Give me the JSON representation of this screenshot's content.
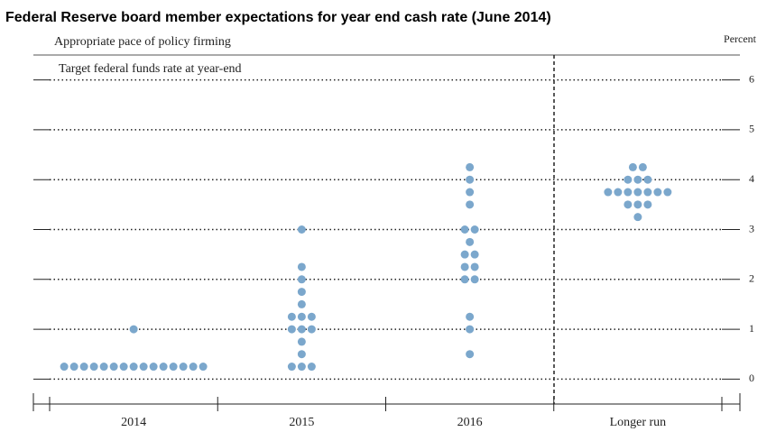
{
  "chart_data": {
    "type": "dotplot",
    "title": "Federal Reserve board member expectations for year end cash rate (June 2014)",
    "subtitle": "Appropriate pace of policy firming",
    "y_label": "Target federal funds rate at year-end",
    "y_unit": "Percent",
    "categories": [
      "2014",
      "2015",
      "2016",
      "Longer run"
    ],
    "values": [
      [
        0.25,
        0.25,
        0.25,
        0.25,
        0.25,
        0.25,
        0.25,
        0.25,
        0.25,
        0.25,
        0.25,
        0.25,
        0.25,
        0.25,
        0.25,
        1.0
      ],
      [
        0.25,
        0.25,
        0.25,
        0.5,
        0.75,
        1.0,
        1.0,
        1.0,
        1.25,
        1.25,
        1.25,
        1.5,
        1.75,
        2.0,
        2.25,
        3.0
      ],
      [
        0.5,
        1.0,
        1.25,
        2.0,
        2.0,
        2.25,
        2.25,
        2.5,
        2.5,
        2.75,
        3.0,
        3.0,
        3.5,
        3.75,
        4.0,
        4.25
      ],
      [
        3.25,
        3.5,
        3.5,
        3.5,
        3.75,
        3.75,
        3.75,
        3.75,
        3.75,
        3.75,
        3.75,
        4.0,
        4.0,
        4.0,
        4.25,
        4.25
      ]
    ],
    "color": "#7ba7cc",
    "ylim": [
      -0.5,
      6.5
    ],
    "yticks": [
      0,
      1,
      2,
      3,
      4,
      5,
      6
    ],
    "grid": true
  }
}
